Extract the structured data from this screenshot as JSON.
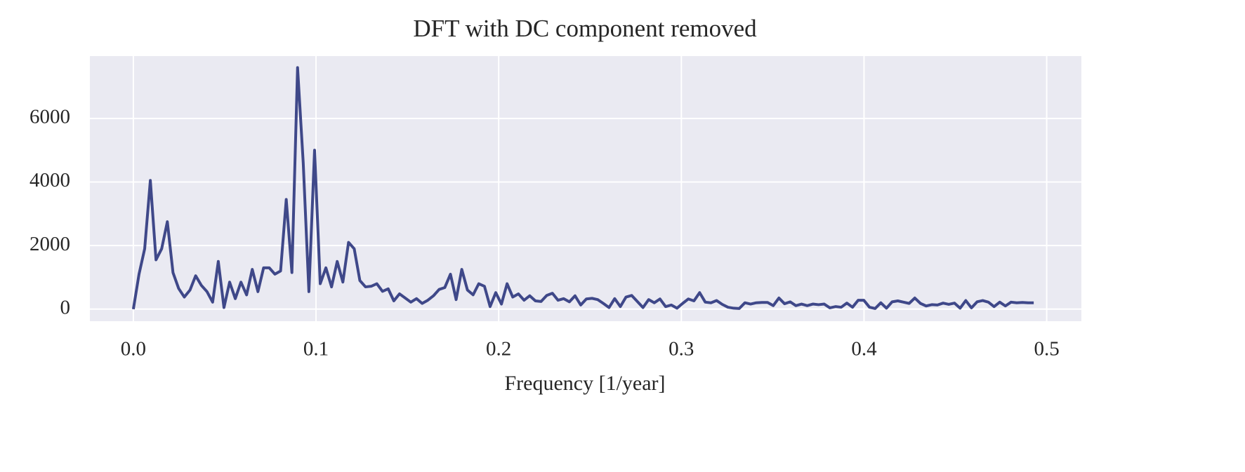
{
  "chart_data": {
    "type": "line",
    "title": "DFT with DC component removed",
    "x_label": "Frequency [1/year]",
    "color": "#3f4889",
    "grid": true,
    "xlim": [
      -0.0238,
      0.519
    ],
    "ylim": [
      -380,
      7960
    ],
    "xticks": [
      {
        "value": 0,
        "label": "0.0"
      },
      0.1,
      0.2,
      0.3,
      0.4,
      0.5
    ],
    "yticks": [
      0,
      2000,
      4000,
      6000
    ],
    "x": [
      0,
      0.0031,
      0.0062,
      0.0093,
      0.0124,
      0.0155,
      0.0186,
      0.0217,
      0.0248,
      0.0279,
      0.031,
      0.0341,
      0.0372,
      0.0403,
      0.0434,
      0.0465,
      0.0496,
      0.0527,
      0.0558,
      0.0589,
      0.062,
      0.0651,
      0.0682,
      0.0713,
      0.0744,
      0.0775,
      0.0806,
      0.0837,
      0.0868,
      0.0899,
      0.093,
      0.0961,
      0.0992,
      0.1023,
      0.1054,
      0.1085,
      0.1116,
      0.1147,
      0.1178,
      0.1209,
      0.124,
      0.1271,
      0.1302,
      0.1333,
      0.1364,
      0.1395,
      0.1426,
      0.1457,
      0.1488,
      0.1519,
      0.155,
      0.1581,
      0.1612,
      0.1643,
      0.1674,
      0.1705,
      0.1736,
      0.1767,
      0.1798,
      0.1829,
      0.186,
      0.1891,
      0.1922,
      0.1953,
      0.1984,
      0.2015,
      0.2046,
      0.2077,
      0.2108,
      0.2139,
      0.217,
      0.2201,
      0.2232,
      0.2263,
      0.2294,
      0.2325,
      0.2356,
      0.2387,
      0.2418,
      0.2449,
      0.248,
      0.2511,
      0.2542,
      0.2573,
      0.2604,
      0.2635,
      0.2666,
      0.2697,
      0.2728,
      0.2759,
      0.279,
      0.2821,
      0.2852,
      0.2883,
      0.2914,
      0.2945,
      0.2976,
      0.3007,
      0.3038,
      0.3069,
      0.31,
      0.3131,
      0.3162,
      0.3193,
      0.3224,
      0.3255,
      0.3286,
      0.3317,
      0.3348,
      0.3379,
      0.341,
      0.3441,
      0.3472,
      0.3503,
      0.3534,
      0.3565,
      0.3596,
      0.3627,
      0.3658,
      0.3689,
      0.372,
      0.3751,
      0.3782,
      0.3813,
      0.3844,
      0.3875,
      0.3906,
      0.3937,
      0.3968,
      0.3999,
      0.403,
      0.4061,
      0.4092,
      0.4123,
      0.4154,
      0.4185,
      0.4216,
      0.4247,
      0.4278,
      0.4309,
      0.434,
      0.4371,
      0.4402,
      0.4433,
      0.4464,
      0.4495,
      0.4526,
      0.4557,
      0.4588,
      0.4619,
      0.465,
      0.4681,
      0.4712,
      0.4743,
      0.4774,
      0.4805,
      0.4836,
      0.4867,
      0.4898,
      0.4929
    ],
    "values": [
      0,
      1100,
      1900,
      4050,
      1550,
      1900,
      2750,
      1150,
      650,
      380,
      600,
      1050,
      750,
      550,
      220,
      1500,
      50,
      850,
      330,
      850,
      450,
      1250,
      550,
      1300,
      1300,
      1100,
      1200,
      3450,
      1150,
      7600,
      4600,
      550,
      5000,
      800,
      1300,
      700,
      1500,
      850,
      2100,
      1900,
      900,
      700,
      720,
      800,
      560,
      640,
      260,
      480,
      350,
      220,
      330,
      180,
      280,
      420,
      620,
      680,
      1100,
      300,
      1250,
      600,
      450,
      800,
      720,
      80,
      520,
      160,
      800,
      380,
      480,
      280,
      420,
      260,
      240,
      430,
      500,
      280,
      330,
      230,
      420,
      130,
      320,
      340,
      300,
      180,
      50,
      330,
      80,
      380,
      430,
      240,
      50,
      300,
      200,
      320,
      80,
      130,
      30,
      180,
      320,
      260,
      520,
      220,
      200,
      270,
      150,
      60,
      30,
      20,
      200,
      160,
      200,
      210,
      210,
      110,
      350,
      170,
      230,
      110,
      160,
      110,
      160,
      140,
      160,
      40,
      80,
      60,
      190,
      60,
      280,
      280,
      60,
      20,
      200,
      30,
      230,
      260,
      220,
      180,
      350,
      180,
      100,
      140,
      130,
      190,
      150,
      190,
      30,
      270,
      40,
      230,
      270,
      220,
      80,
      220,
      100,
      220,
      200,
      210,
      200,
      200
    ]
  }
}
